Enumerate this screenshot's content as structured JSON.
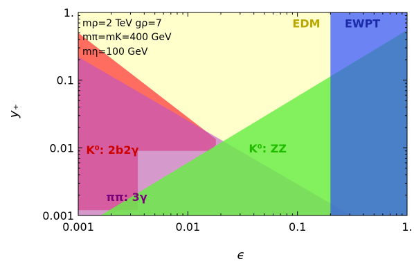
{
  "chart_data": {
    "type": "area",
    "xlabel": "ϵ",
    "ylabel": "y₊",
    "xscale": "log",
    "yscale": "log",
    "xlim": [
      0.001,
      1
    ],
    "ylim": [
      0.001,
      1
    ],
    "xticks": [
      {
        "value": 0.001,
        "label": "0.001"
      },
      {
        "value": 0.01,
        "label": "0.01"
      },
      {
        "value": 0.1,
        "label": "0.1"
      },
      {
        "value": 1,
        "label": "1."
      }
    ],
    "yticks": [
      {
        "value": 0.001,
        "label": "0.001"
      },
      {
        "value": 0.01,
        "label": "0.01"
      },
      {
        "value": 0.1,
        "label": "0.1"
      },
      {
        "value": 1,
        "label": "1."
      }
    ],
    "parameters": {
      "line1": "mρ=2 TeV  gρ=7",
      "line2": "mπ=mK=400 GeV",
      "line3": "mη=100 GeV"
    },
    "regions": [
      {
        "label": "EDM",
        "color": "#ffffcc",
        "opacity": 1,
        "label_color": "#b8a800",
        "polygon": [
          [
            0.001,
            0.001
          ],
          [
            0.2,
            0.001
          ],
          [
            0.2,
            1
          ],
          [
            0.001,
            1
          ]
        ],
        "label_at": [
          0.09,
          0.6
        ]
      },
      {
        "label": "K⁰: 2b2γ",
        "color": "#ff3c3c",
        "opacity": 0.75,
        "label_color": "#cc0000",
        "polygon": [
          [
            0.001,
            0.5
          ],
          [
            0.018,
            0.0135
          ],
          [
            0.018,
            0.011
          ],
          [
            0.016,
            0.009
          ],
          [
            0.0035,
            0.009
          ],
          [
            0.0035,
            0.0012
          ],
          [
            0.001,
            0.0012
          ]
        ],
        "label_at": [
          0.00118,
          0.0082
        ]
      },
      {
        "label": "ππ: 3γ",
        "color": "#bb55cc",
        "opacity": 0.6,
        "label_color": "#7a007a",
        "polygon": [
          [
            0.001,
            0.22
          ],
          [
            0.31,
            0.001
          ],
          [
            0.001,
            0.001
          ]
        ],
        "label_at": [
          0.0018,
          0.00165
        ]
      },
      {
        "label": "K⁰: ZZ",
        "color": "#66ee44",
        "opacity": 0.82,
        "label_color": "#22bb00",
        "polygon": [
          [
            0.0016,
            0.001
          ],
          [
            1,
            0.55
          ],
          [
            1,
            0.001
          ]
        ],
        "label_at": [
          0.036,
          0.0085
        ]
      },
      {
        "label": "EWPT",
        "color": "#3355ee",
        "opacity": 0.72,
        "label_color": "#1a2aa8",
        "polygon": [
          [
            0.2,
            0.001
          ],
          [
            1,
            0.001
          ],
          [
            1,
            1
          ],
          [
            0.2,
            1
          ]
        ],
        "label_at": [
          0.27,
          0.6
        ]
      }
    ]
  }
}
